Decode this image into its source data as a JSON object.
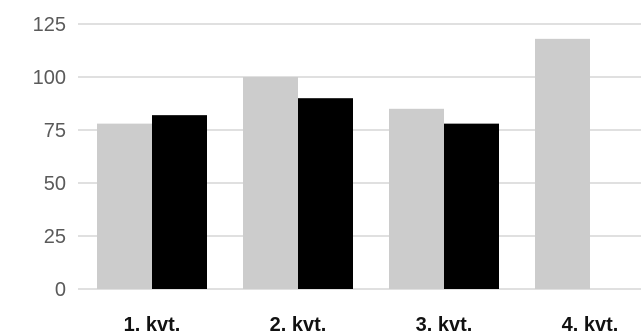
{
  "chart_data": {
    "type": "bar",
    "categories": [
      "1. kvt.",
      "2. kvt.",
      "3. kvt.",
      "4. kvt."
    ],
    "series": [
      {
        "values": [
          78,
          100,
          85,
          118
        ],
        "color": "#cccccc"
      },
      {
        "values": [
          82,
          90,
          78,
          null
        ],
        "color": "#000000"
      }
    ],
    "yticks": [
      "0",
      "25",
      "50",
      "75",
      "100",
      "125"
    ],
    "ylim": [
      0,
      125
    ],
    "grid": true,
    "legend": "none"
  }
}
